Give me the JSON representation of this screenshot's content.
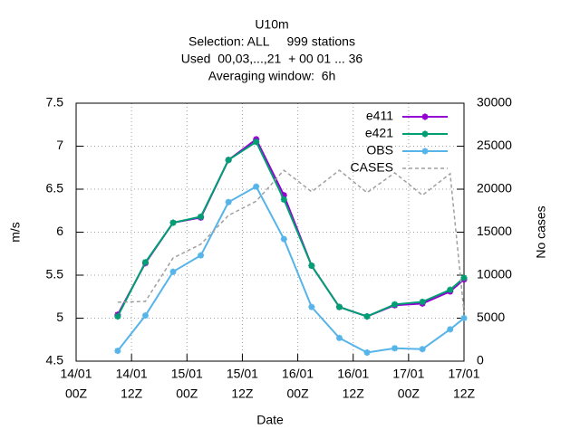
{
  "chart_data": {
    "type": "line",
    "title": [
      "U10m",
      "Selection: ALL     999 stations",
      "Used  00,03,...,21  + 00 01 ... 36",
      "Averaging window:  6h"
    ],
    "xlabel": "Date",
    "ylabel": "m/s",
    "y2label": "No cases",
    "x": [
      9,
      15,
      21,
      27,
      33,
      39,
      45,
      51,
      57,
      63,
      69,
      75,
      81,
      84
    ],
    "xlim": [
      0,
      84
    ],
    "xticks": [
      {
        "value": 0,
        "label": [
          "14/01",
          "00Z"
        ]
      },
      {
        "value": 12,
        "label": [
          "14/01",
          "12Z"
        ]
      },
      {
        "value": 24,
        "label": [
          "15/01",
          "00Z"
        ]
      },
      {
        "value": 36,
        "label": [
          "15/01",
          "12Z"
        ]
      },
      {
        "value": 48,
        "label": [
          "16/01",
          "00Z"
        ]
      },
      {
        "value": 60,
        "label": [
          "16/01",
          "12Z"
        ]
      },
      {
        "value": 72,
        "label": [
          "17/01",
          "00Z"
        ]
      },
      {
        "value": 84,
        "label": [
          "17/01",
          "12Z"
        ]
      }
    ],
    "ylim": [
      4.5,
      7.5
    ],
    "yticks": [
      4.5,
      5,
      5.5,
      6,
      6.5,
      7,
      7.5
    ],
    "y2lim": [
      0,
      30000
    ],
    "y2ticks": [
      0,
      5000,
      10000,
      15000,
      20000,
      25000,
      30000
    ],
    "grid": true,
    "legend": "top-right",
    "series": [
      {
        "name": "e411",
        "color": "#9400d3",
        "values": [
          5.04,
          5.64,
          6.11,
          6.17,
          6.84,
          7.08,
          6.43,
          5.61,
          5.13,
          5.02,
          5.15,
          5.17,
          5.31,
          5.45
        ]
      },
      {
        "name": "e421",
        "color": "#009e73",
        "values": [
          5.02,
          5.65,
          6.11,
          6.18,
          6.84,
          7.05,
          6.38,
          5.61,
          5.13,
          5.02,
          5.16,
          5.19,
          5.33,
          5.47
        ]
      },
      {
        "name": "OBS",
        "color": "#56b4e9",
        "values": [
          4.62,
          5.03,
          5.54,
          5.73,
          6.35,
          6.53,
          5.92,
          5.13,
          4.77,
          4.6,
          4.65,
          4.64,
          4.87,
          5.0
        ]
      },
      {
        "name": "CASES",
        "color": "#a0a0a0",
        "axis": "y2",
        "dashed": true,
        "values": [
          6850,
          6950,
          12000,
          13600,
          16950,
          18600,
          22200,
          19700,
          22200,
          19600,
          21900,
          19300,
          21800,
          5700
        ]
      }
    ]
  }
}
